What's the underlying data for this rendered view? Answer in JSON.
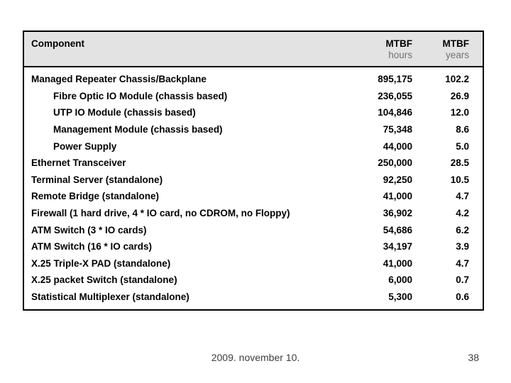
{
  "table": {
    "header": {
      "component": "Component",
      "hours_col": {
        "line1": "MTBF",
        "line2": "hours"
      },
      "years_col": {
        "line1": "MTBF",
        "line2": "years"
      }
    },
    "rows": [
      {
        "name": "Managed Repeater Chassis/Backplane",
        "hours": "895,175",
        "years": "102.2",
        "indent": false
      },
      {
        "name": "Fibre Optic IO Module (chassis based)",
        "hours": "236,055",
        "years": "26.9",
        "indent": true
      },
      {
        "name": "UTP IO Module (chassis based)",
        "hours": "104,846",
        "years": "12.0",
        "indent": true
      },
      {
        "name": "Management Module (chassis based)",
        "hours": "75,348",
        "years": "8.6",
        "indent": true
      },
      {
        "name": "Power Supply",
        "hours": "44,000",
        "years": "5.0",
        "indent": true
      },
      {
        "name": "Ethernet Transceiver",
        "hours": "250,000",
        "years": "28.5",
        "indent": false
      },
      {
        "name": "Terminal Server (standalone)",
        "hours": "92,250",
        "years": "10.5",
        "indent": false
      },
      {
        "name": "Remote Bridge (standalone)",
        "hours": "41,000",
        "years": "4.7",
        "indent": false
      },
      {
        "name": "Firewall (1 hard drive, 4 * IO card, no CDROM, no Floppy)",
        "hours": "36,902",
        "years": "4.2",
        "indent": false
      },
      {
        "name": "ATM Switch (3 * IO cards)",
        "hours": "54,686",
        "years": "6.2",
        "indent": false
      },
      {
        "name": "ATM Switch (16 * IO cards)",
        "hours": "34,197",
        "years": "3.9",
        "indent": false
      },
      {
        "name": "X.25 Triple-X PAD (standalone)",
        "hours": "41,000",
        "years": "4.7",
        "indent": false
      },
      {
        "name": "X.25 packet Switch (standalone)",
        "hours": "6,000",
        "years": "0.7",
        "indent": false
      },
      {
        "name": "Statistical Multiplexer (standalone)",
        "hours": "5,300",
        "years": "0.6",
        "indent": false
      }
    ]
  },
  "footer": {
    "date": "2009. november 10.",
    "page_number": "38"
  },
  "colors": {
    "background": "#ffffff",
    "border": "#000000",
    "header_bg": "#e3e3e3",
    "text": "#000000",
    "header_subtext": "#737373",
    "footer_text": "#3d3d3d"
  }
}
